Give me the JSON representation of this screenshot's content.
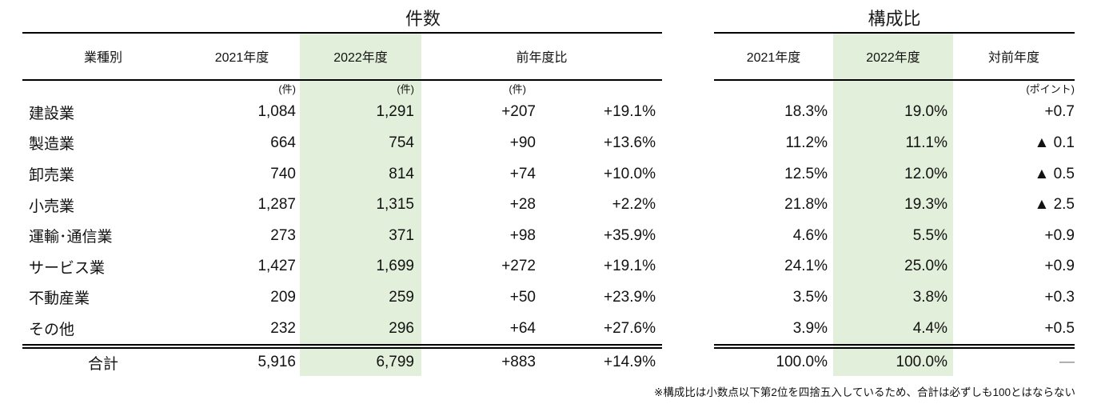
{
  "colors": {
    "highlight_green": "#e2efda",
    "rule_black": "#000000",
    "dash_gray": "#7f7f7f"
  },
  "kensu": {
    "title": "件数",
    "columns": {
      "industry": "業種別",
      "y2021": "2021年度",
      "y2022": "2022年度",
      "yoy": "前年度比"
    },
    "units": {
      "y2021": "(件)",
      "y2022": "(件)",
      "yoy": "(件)"
    },
    "rows": [
      {
        "label": "建設業",
        "y2021": "1,084",
        "y2022": "1,291",
        "diff": "+207",
        "pct": "+19.1%"
      },
      {
        "label": "製造業",
        "y2021": "664",
        "y2022": "754",
        "diff": "+90",
        "pct": "+13.6%"
      },
      {
        "label": "卸売業",
        "y2021": "740",
        "y2022": "814",
        "diff": "+74",
        "pct": "+10.0%"
      },
      {
        "label": "小売業",
        "y2021": "1,287",
        "y2022": "1,315",
        "diff": "+28",
        "pct": "+2.2%"
      },
      {
        "label": "運輸･通信業",
        "y2021": "273",
        "y2022": "371",
        "diff": "+98",
        "pct": "+35.9%"
      },
      {
        "label": "サービス業",
        "y2021": "1,427",
        "y2022": "1,699",
        "diff": "+272",
        "pct": "+19.1%"
      },
      {
        "label": "不動産業",
        "y2021": "209",
        "y2022": "259",
        "diff": "+50",
        "pct": "+23.9%"
      },
      {
        "label": "その他",
        "y2021": "232",
        "y2022": "296",
        "diff": "+64",
        "pct": "+27.6%"
      }
    ],
    "total": {
      "label": "合計",
      "y2021": "5,916",
      "y2022": "6,799",
      "diff": "+883",
      "pct": "+14.9%"
    }
  },
  "kosei": {
    "title": "構成比",
    "columns": {
      "y2021": "2021年度",
      "y2022": "2022年度",
      "vs_prev": "対前年度"
    },
    "units": {
      "vs_prev": "(ポイント)"
    },
    "rows": [
      {
        "y2021": "18.3%",
        "y2022": "19.0%",
        "diff": "+0.7"
      },
      {
        "y2021": "11.2%",
        "y2022": "11.1%",
        "diff": "▲ 0.1"
      },
      {
        "y2021": "12.5%",
        "y2022": "12.0%",
        "diff": "▲ 0.5"
      },
      {
        "y2021": "21.8%",
        "y2022": "19.3%",
        "diff": "▲ 2.5"
      },
      {
        "y2021": "4.6%",
        "y2022": "5.5%",
        "diff": "+0.9"
      },
      {
        "y2021": "24.1%",
        "y2022": "25.0%",
        "diff": "+0.9"
      },
      {
        "y2021": "3.5%",
        "y2022": "3.8%",
        "diff": "+0.3"
      },
      {
        "y2021": "3.9%",
        "y2022": "4.4%",
        "diff": "+0.5"
      }
    ],
    "total": {
      "y2021": "100.0%",
      "y2022": "100.0%",
      "diff": "—"
    }
  },
  "footnote": "※構成比は小数点以下第2位を四捨五入しているため、合計は必ずしも100とはならない"
}
